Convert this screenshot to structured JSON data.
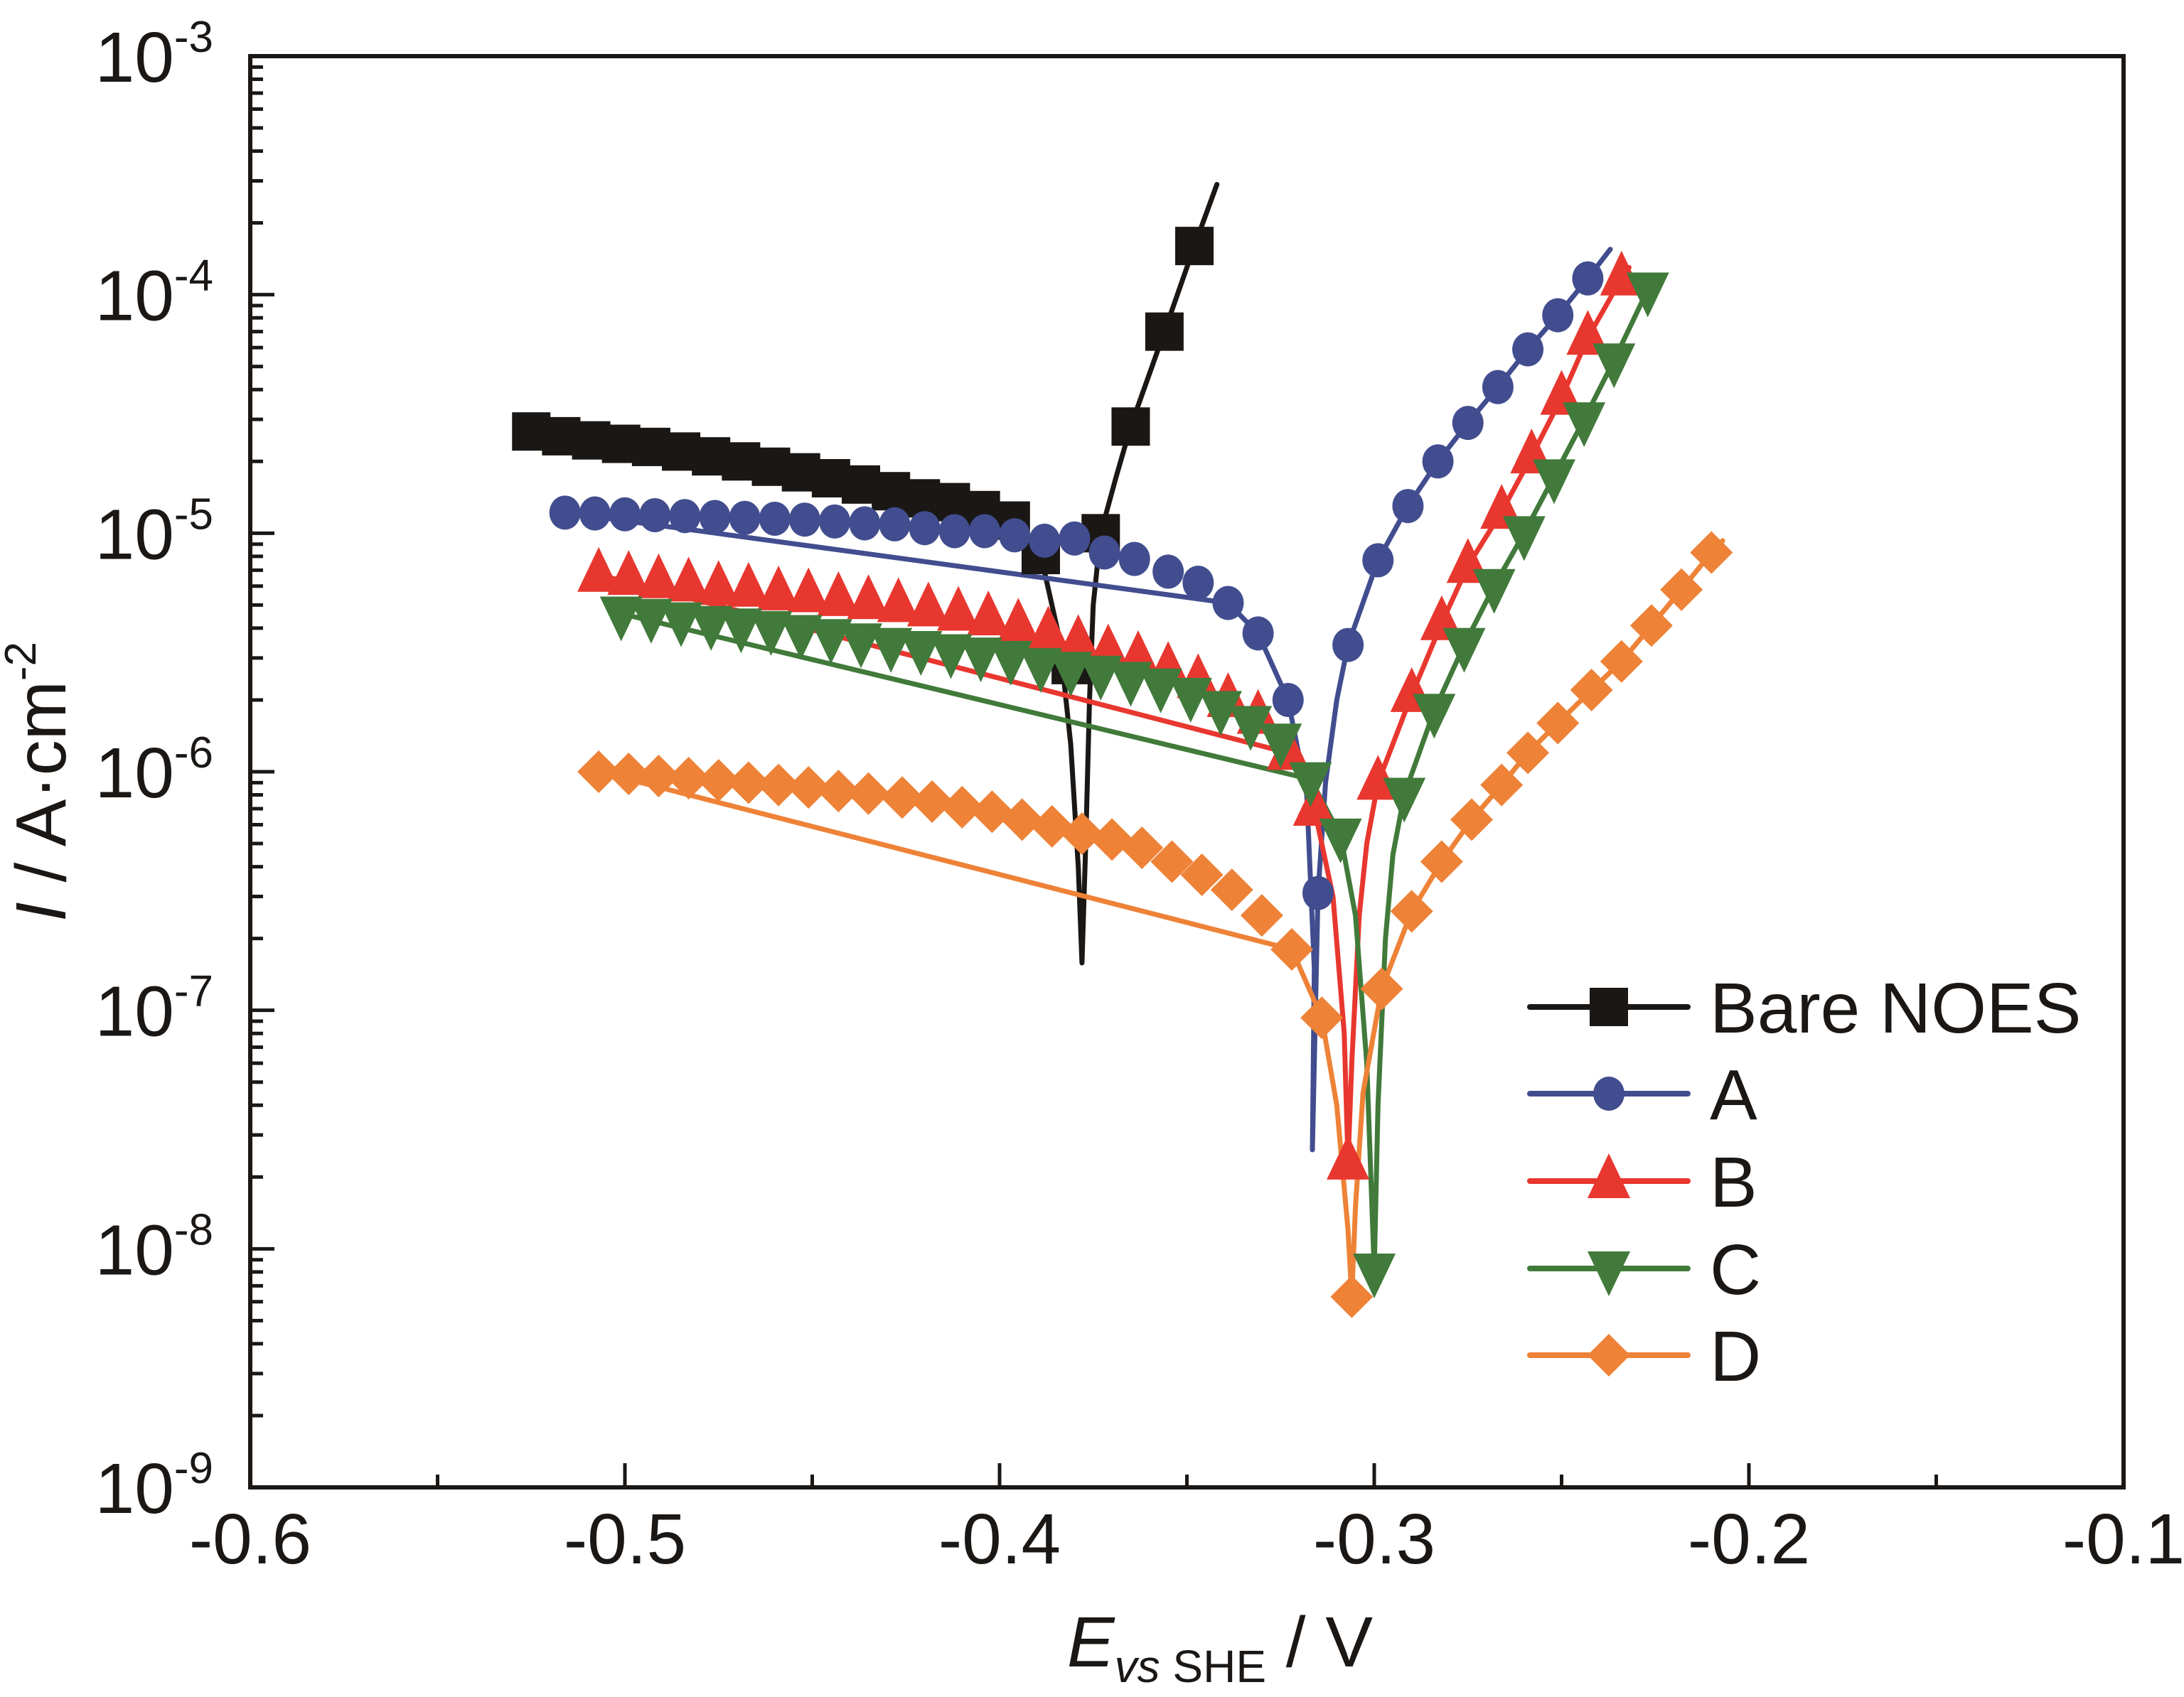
{
  "chart_data": {
    "type": "line",
    "title": "",
    "xlabel": {
      "main": "E",
      "subscript": "vs SHE",
      "unit": " / V"
    },
    "ylabel": {
      "main": "I",
      "unit": " / A·cm",
      "superscript": "-2"
    },
    "xlim": [
      -0.6,
      -0.1
    ],
    "ylim": [
      1e-09,
      0.001
    ],
    "yscale": "log",
    "grid": false,
    "legend_position": "bottom-right",
    "x_ticks": {
      "major": [
        -0.6,
        -0.5,
        -0.4,
        -0.3,
        -0.2,
        -0.1
      ],
      "labels": [
        "-0.6",
        "-0.5",
        "-0.4",
        "-0.3",
        "-0.2",
        "-0.1"
      ],
      "minor": [
        -0.55,
        -0.45,
        -0.35,
        -0.25,
        -0.15
      ]
    },
    "y_ticks": {
      "major": [
        -9,
        -8,
        -7,
        -6,
        -5,
        -4,
        -3
      ],
      "labels": [
        {
          "base": "10",
          "exp": "-9"
        },
        {
          "base": "10",
          "exp": "-8"
        },
        {
          "base": "10",
          "exp": "-7"
        },
        {
          "base": "10",
          "exp": "-6"
        },
        {
          "base": "10",
          "exp": "-5"
        },
        {
          "base": "10",
          "exp": "-4"
        },
        {
          "base": "10",
          "exp": "-3"
        }
      ]
    },
    "series": [
      {
        "name": "Bare NOES",
        "color": "#1a1715",
        "marker": "square",
        "markers": [
          [
            -0.525,
            2.67e-05
          ],
          [
            -0.517,
            2.55e-05
          ],
          [
            -0.509,
            2.45e-05
          ],
          [
            -0.501,
            2.37e-05
          ],
          [
            -0.493,
            2.3e-05
          ],
          [
            -0.485,
            2.2e-05
          ],
          [
            -0.477,
            2.1e-05
          ],
          [
            -0.469,
            2e-05
          ],
          [
            -0.461,
            1.9e-05
          ],
          [
            -0.453,
            1.8e-05
          ],
          [
            -0.445,
            1.7e-05
          ],
          [
            -0.437,
            1.6e-05
          ],
          [
            -0.429,
            1.5e-05
          ],
          [
            -0.421,
            1.4e-05
          ],
          [
            -0.413,
            1.35e-05
          ],
          [
            -0.405,
            1.25e-05
          ],
          [
            -0.397,
            1.13e-05
          ],
          [
            -0.389,
            8.1e-06
          ],
          [
            -0.381,
            2.8e-06
          ],
          [
            -0.373,
            1e-05
          ],
          [
            -0.365,
            2.8e-05
          ],
          [
            -0.356,
            7e-05
          ],
          [
            -0.348,
            0.00016
          ]
        ],
        "line": [
          [
            -0.525,
            2.67e-05
          ],
          [
            -0.405,
            1.25e-05
          ],
          [
            -0.397,
            1.13e-05
          ],
          [
            -0.389,
            8.1e-06
          ],
          [
            -0.384,
            3.6e-06
          ],
          [
            -0.381,
            1.3e-06
          ],
          [
            -0.379,
            4e-07
          ],
          [
            -0.378,
            1.58e-07
          ],
          [
            -0.377,
            5e-07
          ],
          [
            -0.376,
            2e-06
          ],
          [
            -0.375,
            5e-06
          ],
          [
            -0.373,
            1e-05
          ],
          [
            -0.369,
            1.7e-05
          ],
          [
            -0.365,
            2.8e-05
          ],
          [
            -0.356,
            7e-05
          ],
          [
            -0.348,
            0.00016
          ],
          [
            -0.342,
            0.00029
          ]
        ]
      },
      {
        "name": "A",
        "color": "#414d8e",
        "marker": "circle",
        "markers": [
          [
            -0.516,
            1.22e-05
          ],
          [
            -0.508,
            1.21e-05
          ],
          [
            -0.5,
            1.2e-05
          ],
          [
            -0.492,
            1.19e-05
          ],
          [
            -0.484,
            1.18e-05
          ],
          [
            -0.476,
            1.17e-05
          ],
          [
            -0.468,
            1.16e-05
          ],
          [
            -0.46,
            1.15e-05
          ],
          [
            -0.452,
            1.14e-05
          ],
          [
            -0.444,
            1.12e-05
          ],
          [
            -0.436,
            1.1e-05
          ],
          [
            -0.428,
            1.09e-05
          ],
          [
            -0.42,
            1.05e-05
          ],
          [
            -0.412,
            1.02e-05
          ],
          [
            -0.404,
            1.02e-05
          ],
          [
            -0.396,
            9.8e-06
          ],
          [
            -0.388,
            9.3e-06
          ],
          [
            -0.38,
            9.5e-06
          ],
          [
            -0.372,
            8.3e-06
          ],
          [
            -0.364,
            7.8e-06
          ],
          [
            -0.355,
            6.9e-06
          ],
          [
            -0.347,
            6.2e-06
          ],
          [
            -0.339,
            5.1e-06
          ],
          [
            -0.331,
            3.8e-06
          ],
          [
            -0.323,
            2e-06
          ],
          [
            -0.315,
            3.1e-07
          ],
          [
            -0.307,
            3.4e-06
          ],
          [
            -0.299,
            7.7e-06
          ],
          [
            -0.291,
            1.3e-05
          ],
          [
            -0.283,
            2e-05
          ],
          [
            -0.275,
            2.9e-05
          ],
          [
            -0.267,
            4.1e-05
          ],
          [
            -0.259,
            5.9e-05
          ],
          [
            -0.251,
            8.2e-05
          ],
          [
            -0.243,
            0.000117
          ]
        ],
        "line": [
          [
            -0.516,
            1.22e-05
          ],
          [
            -0.339,
            5.1e-06
          ],
          [
            -0.331,
            3.8e-06
          ],
          [
            -0.323,
            2e-06
          ],
          [
            -0.318,
            8e-07
          ],
          [
            -0.316,
            1.5e-07
          ],
          [
            -0.3165,
            2.6e-08
          ],
          [
            -0.315,
            3.1e-07
          ],
          [
            -0.313,
            9e-07
          ],
          [
            -0.31,
            2e-06
          ],
          [
            -0.307,
            3.4e-06
          ],
          [
            -0.299,
            7.7e-06
          ],
          [
            -0.291,
            1.3e-05
          ],
          [
            -0.283,
            2e-05
          ],
          [
            -0.275,
            2.9e-05
          ],
          [
            -0.267,
            4.1e-05
          ],
          [
            -0.259,
            5.9e-05
          ],
          [
            -0.251,
            8.2e-05
          ],
          [
            -0.243,
            0.000117
          ],
          [
            -0.237,
            0.000155
          ]
        ]
      },
      {
        "name": "B",
        "color": "#e8372f",
        "marker": "triangle-up",
        "markers": [
          [
            -0.507,
            6.7e-06
          ],
          [
            -0.499,
            6.5e-06
          ],
          [
            -0.491,
            6.3e-06
          ],
          [
            -0.483,
            6.1e-06
          ],
          [
            -0.475,
            5.9e-06
          ],
          [
            -0.467,
            5.8e-06
          ],
          [
            -0.459,
            5.6e-06
          ],
          [
            -0.451,
            5.5e-06
          ],
          [
            -0.443,
            5.3e-06
          ],
          [
            -0.435,
            5.15e-06
          ],
          [
            -0.427,
            5e-06
          ],
          [
            -0.419,
            4.8e-06
          ],
          [
            -0.411,
            4.6e-06
          ],
          [
            -0.403,
            4.4e-06
          ],
          [
            -0.395,
            4.1e-06
          ],
          [
            -0.387,
            3.8e-06
          ],
          [
            -0.379,
            3.5e-06
          ],
          [
            -0.371,
            3.2e-06
          ],
          [
            -0.363,
            3e-06
          ],
          [
            -0.355,
            2.7e-06
          ],
          [
            -0.347,
            2.4e-06
          ],
          [
            -0.339,
            2e-06
          ],
          [
            -0.331,
            1.7e-06
          ],
          [
            -0.323,
            1.2e-06
          ],
          [
            -0.316,
            7e-07
          ],
          [
            -0.307,
            2.3e-08
          ],
          [
            -0.299,
            9e-07
          ],
          [
            -0.29,
            2.1e-06
          ],
          [
            -0.282,
            4.2e-06
          ],
          [
            -0.275,
            7.3e-06
          ],
          [
            -0.266,
            1.23e-05
          ],
          [
            -0.258,
            2.1e-05
          ],
          [
            -0.25,
            3.7e-05
          ],
          [
            -0.243,
            6.6e-05
          ],
          [
            -0.234,
            0.000117
          ]
        ],
        "line": [
          [
            -0.507,
            6.7e-06
          ],
          [
            -0.323,
            1.2e-06
          ],
          [
            -0.316,
            7e-07
          ],
          [
            -0.311,
            3e-07
          ],
          [
            -0.308,
            8e-08
          ],
          [
            -0.307,
            2.3e-08
          ],
          [
            -0.306,
            6e-08
          ],
          [
            -0.304,
            2.5e-07
          ],
          [
            -0.302,
            5e-07
          ],
          [
            -0.299,
            9e-07
          ],
          [
            -0.29,
            2.1e-06
          ],
          [
            -0.282,
            4.2e-06
          ],
          [
            -0.275,
            7.3e-06
          ],
          [
            -0.266,
            1.23e-05
          ],
          [
            -0.258,
            2.1e-05
          ],
          [
            -0.25,
            3.7e-05
          ],
          [
            -0.243,
            6.6e-05
          ],
          [
            -0.234,
            0.000117
          ],
          [
            -0.232,
            0.00013
          ]
        ]
      },
      {
        "name": "C",
        "color": "#417a3a",
        "marker": "triangle-down",
        "markers": [
          [
            -0.501,
            4.6e-06
          ],
          [
            -0.493,
            4.5e-06
          ],
          [
            -0.485,
            4.35e-06
          ],
          [
            -0.477,
            4.2e-06
          ],
          [
            -0.469,
            4.1e-06
          ],
          [
            -0.461,
            4e-06
          ],
          [
            -0.453,
            3.85e-06
          ],
          [
            -0.445,
            3.7e-06
          ],
          [
            -0.437,
            3.55e-06
          ],
          [
            -0.429,
            3.4e-06
          ],
          [
            -0.421,
            3.3e-06
          ],
          [
            -0.413,
            3.2e-06
          ],
          [
            -0.405,
            3.1e-06
          ],
          [
            -0.397,
            3e-06
          ],
          [
            -0.389,
            2.8e-06
          ],
          [
            -0.381,
            2.7e-06
          ],
          [
            -0.373,
            2.6e-06
          ],
          [
            -0.365,
            2.45e-06
          ],
          [
            -0.357,
            2.3e-06
          ],
          [
            -0.349,
            2.1e-06
          ],
          [
            -0.341,
            1.85e-06
          ],
          [
            -0.333,
            1.6e-06
          ],
          [
            -0.325,
            1.35e-06
          ],
          [
            -0.317,
            9.3e-07
          ],
          [
            -0.309,
            5.4e-07
          ],
          [
            -0.3,
            8.1e-09
          ],
          [
            -0.292,
            8e-07
          ],
          [
            -0.284,
            1.8e-06
          ],
          [
            -0.276,
            3.4e-06
          ],
          [
            -0.268,
            6e-06
          ],
          [
            -0.26,
            1e-05
          ],
          [
            -0.252,
            1.73e-05
          ],
          [
            -0.244,
            3e-05
          ],
          [
            -0.236,
            5.3e-05
          ],
          [
            -0.227,
            0.000105
          ]
        ],
        "line": [
          [
            -0.501,
            4.6e-06
          ],
          [
            -0.317,
            9.3e-07
          ],
          [
            -0.309,
            5.4e-07
          ],
          [
            -0.305,
            2.5e-07
          ],
          [
            -0.302,
            6e-08
          ],
          [
            -0.3,
            8.1e-09
          ],
          [
            -0.299,
            4e-08
          ],
          [
            -0.297,
            2e-07
          ],
          [
            -0.295,
            4.5e-07
          ],
          [
            -0.292,
            8e-07
          ],
          [
            -0.284,
            1.8e-06
          ],
          [
            -0.276,
            3.4e-06
          ],
          [
            -0.268,
            6e-06
          ],
          [
            -0.26,
            1e-05
          ],
          [
            -0.252,
            1.73e-05
          ],
          [
            -0.244,
            3e-05
          ],
          [
            -0.236,
            5.3e-05
          ],
          [
            -0.227,
            0.000105
          ]
        ]
      },
      {
        "name": "D",
        "color": "#ee8237",
        "marker": "diamond",
        "markers": [
          [
            -0.507,
            1e-06
          ],
          [
            -0.499,
            9.8e-07
          ],
          [
            -0.491,
            9.6e-07
          ],
          [
            -0.483,
            9.4e-07
          ],
          [
            -0.475,
            9.2e-07
          ],
          [
            -0.467,
            9e-07
          ],
          [
            -0.459,
            8.8e-07
          ],
          [
            -0.451,
            8.6e-07
          ],
          [
            -0.443,
            8.3e-07
          ],
          [
            -0.435,
            8.1e-07
          ],
          [
            -0.426,
            7.8e-07
          ],
          [
            -0.418,
            7.5e-07
          ],
          [
            -0.41,
            7.1e-07
          ],
          [
            -0.402,
            6.8e-07
          ],
          [
            -0.394,
            6.3e-07
          ],
          [
            -0.386,
            5.9e-07
          ],
          [
            -0.378,
            5.5e-07
          ],
          [
            -0.37,
            5.2e-07
          ],
          [
            -0.362,
            4.8e-07
          ],
          [
            -0.354,
            4.2e-07
          ],
          [
            -0.346,
            3.7e-07
          ],
          [
            -0.338,
            3.2e-07
          ],
          [
            -0.33,
            2.5e-07
          ],
          [
            -0.322,
            1.8e-07
          ],
          [
            -0.314,
            9.3e-08
          ],
          [
            -0.306,
            6.3e-09
          ],
          [
            -0.298,
            1.23e-07
          ],
          [
            -0.29,
            2.6e-07
          ],
          [
            -0.282,
            4.2e-07
          ],
          [
            -0.274,
            6.3e-07
          ],
          [
            -0.266,
            8.8e-07
          ],
          [
            -0.259,
            1.2e-06
          ],
          [
            -0.251,
            1.6e-06
          ],
          [
            -0.242,
            2.2e-06
          ],
          [
            -0.234,
            2.9e-06
          ],
          [
            -0.226,
            4.1e-06
          ],
          [
            -0.218,
            5.8e-06
          ],
          [
            -0.21,
            8.3e-06
          ]
        ],
        "line": [
          [
            -0.507,
            1e-06
          ],
          [
            -0.322,
            1.8e-07
          ],
          [
            -0.314,
            9.3e-08
          ],
          [
            -0.31,
            4e-08
          ],
          [
            -0.307,
            1.2e-08
          ],
          [
            -0.306,
            6.3e-09
          ],
          [
            -0.305,
            1.5e-08
          ],
          [
            -0.303,
            4.5e-08
          ],
          [
            -0.298,
            1.23e-07
          ],
          [
            -0.29,
            2.6e-07
          ],
          [
            -0.282,
            4.2e-07
          ],
          [
            -0.274,
            6.3e-07
          ],
          [
            -0.266,
            8.8e-07
          ],
          [
            -0.259,
            1.2e-06
          ],
          [
            -0.251,
            1.6e-06
          ],
          [
            -0.242,
            2.2e-06
          ],
          [
            -0.234,
            2.9e-06
          ],
          [
            -0.226,
            4.1e-06
          ],
          [
            -0.218,
            5.8e-06
          ],
          [
            -0.21,
            8.3e-06
          ],
          [
            -0.207,
            9.3e-06
          ]
        ]
      }
    ]
  }
}
